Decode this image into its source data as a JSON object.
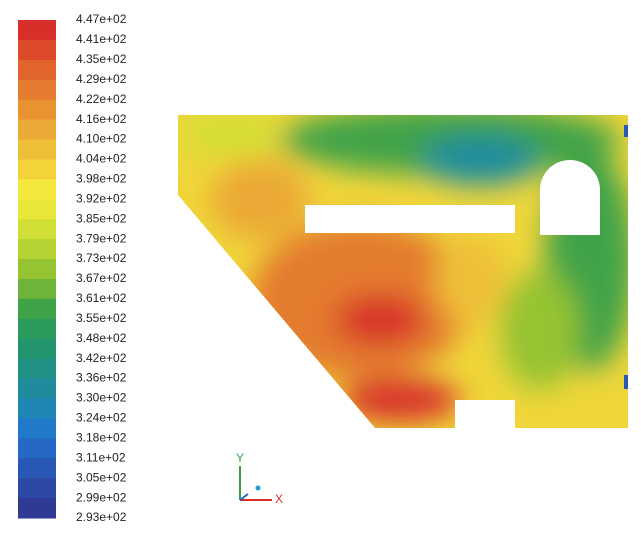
{
  "colorbar": {
    "labels": [
      "4.47e+02",
      "4.41e+02",
      "4.35e+02",
      "4.29e+02",
      "4.22e+02",
      "4.16e+02",
      "4.10e+02",
      "4.04e+02",
      "3.98e+02",
      "3.92e+02",
      "3.85e+02",
      "3.79e+02",
      "3.73e+02",
      "3.67e+02",
      "3.61e+02",
      "3.55e+02",
      "3.48e+02",
      "3.42e+02",
      "3.36e+02",
      "3.30e+02",
      "3.24e+02",
      "3.18e+02",
      "3.11e+02",
      "3.05e+02",
      "2.99e+02",
      "2.93e+02"
    ],
    "colors": [
      "#d7302a",
      "#dc4a2a",
      "#e0642c",
      "#e47b2f",
      "#e89232",
      "#eba935",
      "#efbf38",
      "#f2d43a",
      "#f5e83c",
      "#e9e83a",
      "#d2df36",
      "#b5d233",
      "#95c331",
      "#6eb33a",
      "#3fa349",
      "#2a9b5a",
      "#22956e",
      "#219186",
      "#1f8c9e",
      "#1f86b5",
      "#2179c9",
      "#2568c6",
      "#2957b5",
      "#2c48a4",
      "#2f3a94"
    ]
  },
  "triad": {
    "y_label": "Y",
    "x_label": "X"
  }
}
